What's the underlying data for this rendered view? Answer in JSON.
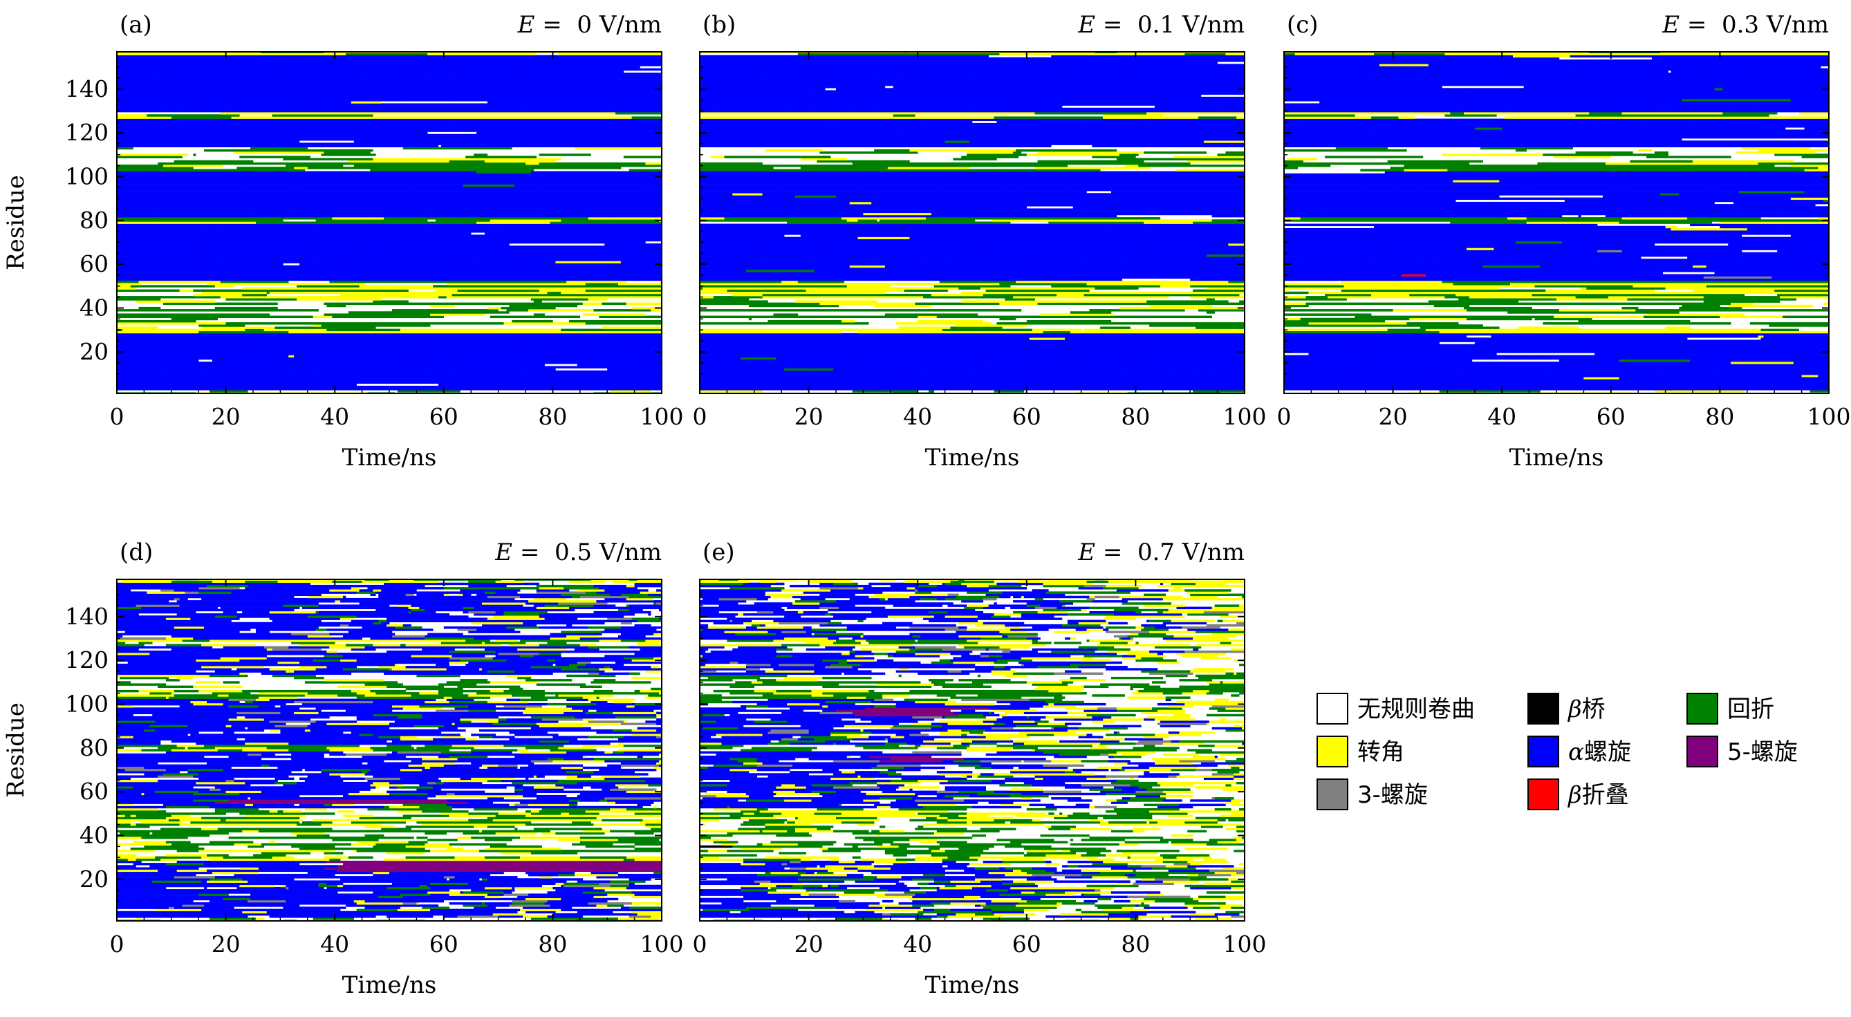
{
  "chart_data": {
    "type": "heatmap",
    "panels": [
      {
        "letter": "(a)",
        "field_label": "E =  0 V/nm",
        "field": 0.0
      },
      {
        "letter": "(b)",
        "field_label": "E =  0.1 V/nm",
        "field": 0.1
      },
      {
        "letter": "(c)",
        "field_label": "E =  0.3 V/nm",
        "field": 0.3
      },
      {
        "letter": "(d)",
        "field_label": "E =  0.5 V/nm",
        "field": 0.5
      },
      {
        "letter": "(e)",
        "field_label": "E =  0.7 V/nm",
        "field": 0.7
      }
    ],
    "xlabel": "Time/ns",
    "ylabel": "Residue",
    "xlim": [
      0,
      100
    ],
    "ylim": [
      1,
      157
    ],
    "xticks": [
      0,
      20,
      40,
      60,
      80,
      100
    ],
    "yticks": [
      20,
      40,
      60,
      80,
      100,
      120,
      140
    ],
    "legend_position": "right",
    "categories": [
      {
        "key": "coil",
        "label": "无规则卷曲",
        "color": "#ffffff"
      },
      {
        "key": "bridge",
        "label": "β桥",
        "color": "#000000"
      },
      {
        "key": "bend",
        "label": "回折",
        "color": "#008000"
      },
      {
        "key": "turn",
        "label": "转角",
        "color": "#ffff00"
      },
      {
        "key": "alpha",
        "label": "α螺旋",
        "color": "#0000ff"
      },
      {
        "key": "pi",
        "label": "5-螺旋",
        "color": "#800080"
      },
      {
        "key": "three10",
        "label": "3-螺旋",
        "color": "#808080"
      },
      {
        "key": "sheet",
        "label": "β折叠",
        "color": "#ff0000"
      }
    ],
    "helix_segments": [
      {
        "residues": [
          3,
          28
        ],
        "structure": "alpha"
      },
      {
        "residues": [
          53,
          78
        ],
        "structure": "alpha"
      },
      {
        "residues": [
          82,
          102
        ],
        "structure": "alpha"
      },
      {
        "residues": [
          114,
          126
        ],
        "structure": "alpha"
      },
      {
        "residues": [
          130,
          155
        ],
        "structure": "alpha"
      }
    ],
    "loop_segments": [
      {
        "residues": [
          29,
          52
        ],
        "structure": "bend/turn/coil"
      },
      {
        "residues": [
          79,
          81
        ],
        "structure": "bend"
      },
      {
        "residues": [
          103,
          113
        ],
        "structure": "bend/turn/coil"
      },
      {
        "residues": [
          127,
          129
        ],
        "structure": "turn/coil"
      },
      {
        "residues": [
          156,
          157
        ],
        "structure": "turn"
      }
    ]
  }
}
